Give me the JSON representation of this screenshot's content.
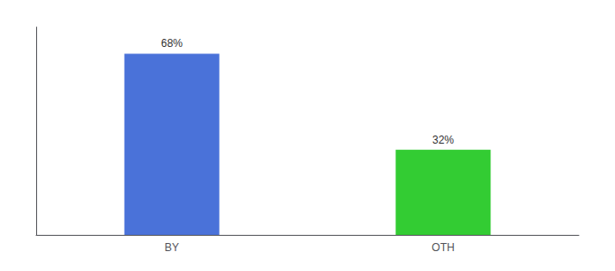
{
  "chart_data": {
    "type": "bar",
    "categories": [
      "BY",
      "OTH"
    ],
    "values": [
      68,
      32
    ],
    "value_labels": [
      "68%",
      "32%"
    ],
    "colors": [
      "#4a72d9",
      "#33cc33"
    ],
    "ylim": [
      0,
      78
    ],
    "data_labels": true,
    "tick_labels": "x",
    "grid": false
  }
}
